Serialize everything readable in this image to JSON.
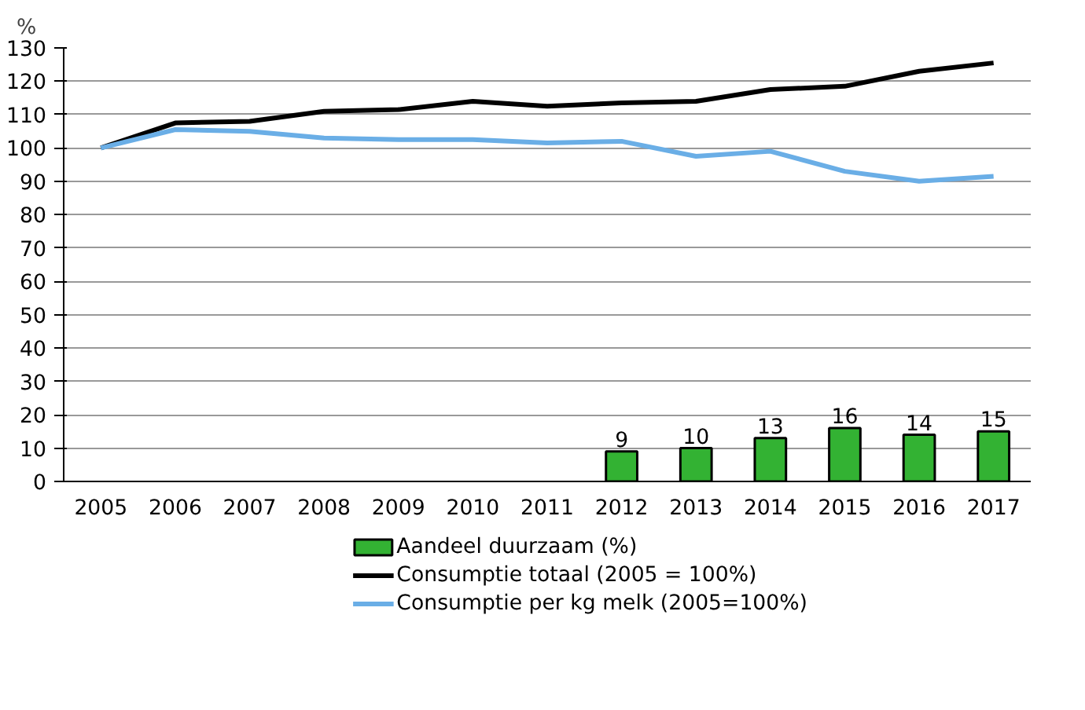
{
  "chart_data": {
    "type": "bar",
    "ylabel": "%",
    "categories": [
      "2005",
      "2006",
      "2007",
      "2008",
      "2009",
      "2010",
      "2011",
      "2012",
      "2013",
      "2014",
      "2015",
      "2016",
      "2017"
    ],
    "series": [
      {
        "name": "Aandeel duurzaam (%)",
        "color": "#33b233",
        "values": [
          null,
          null,
          null,
          null,
          null,
          null,
          null,
          9,
          10,
          13,
          16,
          14,
          15
        ],
        "value_labels": [
          null,
          null,
          null,
          null,
          null,
          null,
          null,
          "9",
          "10",
          "13",
          "16",
          "14",
          "15"
        ]
      },
      {
        "name": "Consumptie totaal (2005 = 100%)",
        "type": "line",
        "color": "#000000",
        "values": [
          100,
          107.5,
          108,
          111,
          111.5,
          114,
          112.5,
          113.5,
          114,
          117.5,
          118.5,
          123,
          125.5
        ]
      },
      {
        "name": "Consumptie per kg melk (2005=100%)",
        "type": "line",
        "color": "#6aaee6",
        "values": [
          100,
          105.5,
          105,
          103,
          102.5,
          102.5,
          101.5,
          102,
          97.5,
          99,
          93,
          90,
          91.5
        ]
      }
    ],
    "ylim": [
      0,
      130
    ],
    "yticks": [
      0,
      10,
      20,
      30,
      40,
      50,
      60,
      70,
      80,
      90,
      100,
      110,
      120,
      130
    ],
    "grid": "y",
    "legend": "bottom"
  }
}
